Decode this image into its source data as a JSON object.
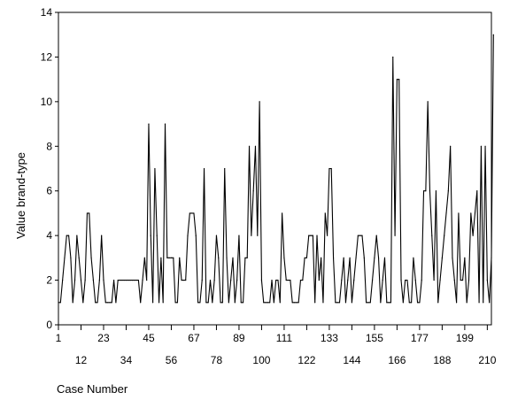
{
  "chart_data": {
    "type": "line",
    "xlabel": "Case Number",
    "ylabel": "Value brand-type",
    "ylim": [
      0,
      14
    ],
    "xlim": [
      1,
      212
    ],
    "yticks": [
      0,
      2,
      4,
      6,
      8,
      10,
      12,
      14
    ],
    "xticks_row1": [
      "1",
      "23",
      "45",
      "67",
      "89",
      "111",
      "133",
      "155",
      "177",
      "199"
    ],
    "xticks_row2": [
      "12",
      "34",
      "56",
      "78",
      "100",
      "122",
      "144",
      "166",
      "188",
      "210"
    ],
    "grid": false,
    "legend": "none",
    "line_color": "#000000",
    "series": [
      {
        "values": [
          1,
          1,
          2,
          3,
          4,
          4,
          3,
          1,
          2,
          4,
          3,
          2,
          1,
          2,
          5,
          5,
          3,
          2,
          1,
          1,
          2,
          4,
          2,
          1,
          1,
          1,
          1,
          2,
          1,
          2,
          2,
          2,
          2,
          2,
          2,
          2,
          2,
          2,
          2,
          2,
          1,
          2,
          3,
          2,
          9,
          4,
          1,
          7,
          4,
          1,
          3,
          1,
          9,
          3,
          3,
          3,
          3,
          1,
          1,
          3,
          2,
          2,
          2,
          4,
          5,
          5,
          5,
          4,
          1,
          1,
          2,
          7,
          1,
          1,
          2,
          1,
          2,
          4,
          3,
          1,
          1,
          7,
          3,
          1,
          2,
          3,
          1,
          2,
          4,
          1,
          1,
          3,
          3,
          8,
          4,
          6,
          8,
          4,
          10,
          2,
          1,
          1,
          1,
          1,
          2,
          1,
          2,
          2,
          1,
          5,
          3,
          2,
          2,
          2,
          1,
          1,
          1,
          1,
          2,
          2,
          3,
          3,
          4,
          4,
          4,
          1,
          4,
          2,
          3,
          1,
          5,
          4,
          7,
          7,
          3,
          1,
          1,
          1,
          2,
          3,
          1,
          2,
          3,
          1,
          2,
          3,
          4,
          4,
          4,
          3,
          1,
          1,
          1,
          2,
          3,
          4,
          3,
          1,
          2,
          3,
          1,
          1,
          1,
          12,
          4,
          11,
          11,
          2,
          1,
          2,
          2,
          1,
          1,
          3,
          2,
          1,
          1,
          2,
          6,
          6,
          10,
          6,
          4,
          2,
          6,
          1,
          2,
          3,
          4,
          5,
          6,
          8,
          3,
          2,
          1,
          5,
          2,
          2,
          3,
          1,
          2,
          5,
          4,
          5,
          6,
          1,
          8,
          1,
          8,
          2,
          1,
          3,
          13
        ]
      }
    ]
  }
}
